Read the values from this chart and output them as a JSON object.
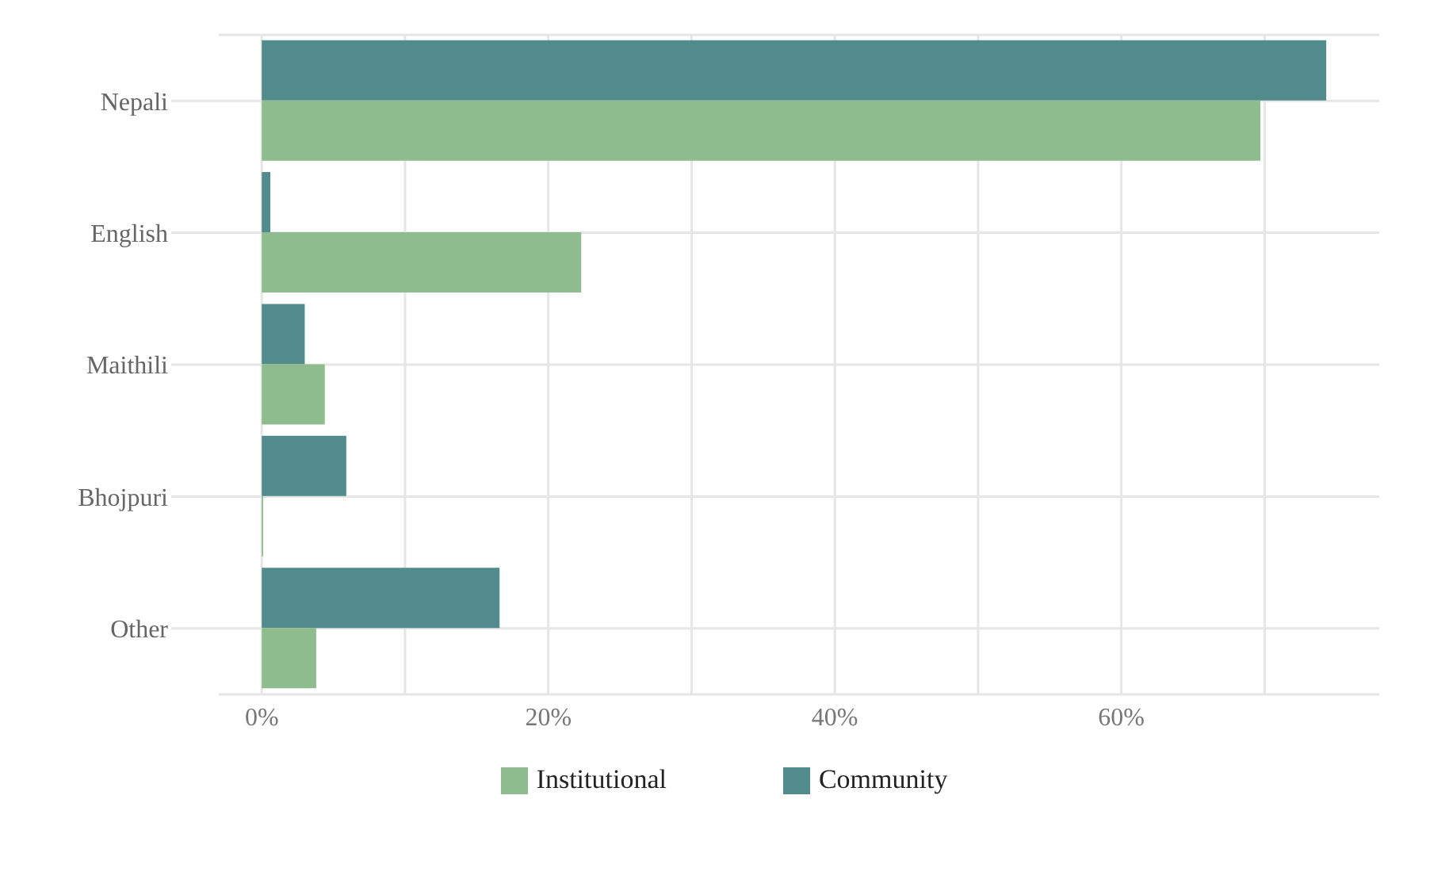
{
  "chart_data": {
    "type": "bar",
    "orientation": "horizontal",
    "categories": [
      "Nepali",
      "English",
      "Maithili",
      "Bhojpuri",
      "Other"
    ],
    "series": [
      {
        "name": "Institutional",
        "color": "#8fbc8f",
        "values": [
          69.7,
          22.3,
          4.4,
          0.1,
          3.8
        ]
      },
      {
        "name": "Community",
        "color": "#528b8b",
        "values": [
          74.3,
          0.6,
          3.0,
          5.9,
          16.6
        ]
      }
    ],
    "xlim": [
      -3,
      78
    ],
    "xticks": [
      {
        "value": 0,
        "label": "0%"
      },
      {
        "value": 10,
        "label": null
      },
      {
        "value": 20,
        "label": "20%"
      },
      {
        "value": 30,
        "label": null
      },
      {
        "value": 40,
        "label": "40%"
      },
      {
        "value": 50,
        "label": null
      },
      {
        "value": 60,
        "label": "60%"
      },
      {
        "value": 70,
        "label": null
      }
    ],
    "grid": true,
    "legend": "bottom"
  }
}
